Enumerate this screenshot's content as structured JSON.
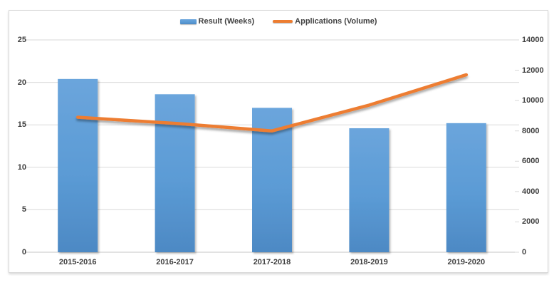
{
  "chart_data": {
    "type": "combo-bar-line",
    "title": "",
    "categories": [
      "2015-2016",
      "2016-2017",
      "2017-2018",
      "2018-2019",
      "2019-2020"
    ],
    "series": [
      {
        "name": "Result (Weeks)",
        "type": "bar",
        "axis": "left",
        "color": "#5b9bd5",
        "values": [
          20.4,
          18.6,
          17,
          14.6,
          15.2
        ]
      },
      {
        "name": "Applications (Volume)",
        "type": "line",
        "axis": "right",
        "color": "#ed7d31",
        "values": [
          8900,
          8500,
          8000,
          9700,
          11700
        ]
      }
    ],
    "left_axis": {
      "min": 0,
      "max": 25,
      "step": 5,
      "ticks": [
        0,
        5,
        10,
        15,
        20,
        25
      ]
    },
    "right_axis": {
      "min": 0,
      "max": 14000,
      "step": 2000,
      "ticks": [
        0,
        2000,
        4000,
        6000,
        8000,
        10000,
        12000,
        14000
      ]
    },
    "grid": true,
    "legend_position": "top"
  },
  "colors": {
    "bar": "#5b9bd5",
    "bar_light": "#6ba5dc",
    "bar_dark": "#4d89c4",
    "line": "#ed7d31",
    "grid": "#d9d9d9",
    "axis_line": "#c6c6c6",
    "text": "#3f3f3f",
    "frame_border": "#d9d9d9",
    "background": "#ffffff"
  }
}
